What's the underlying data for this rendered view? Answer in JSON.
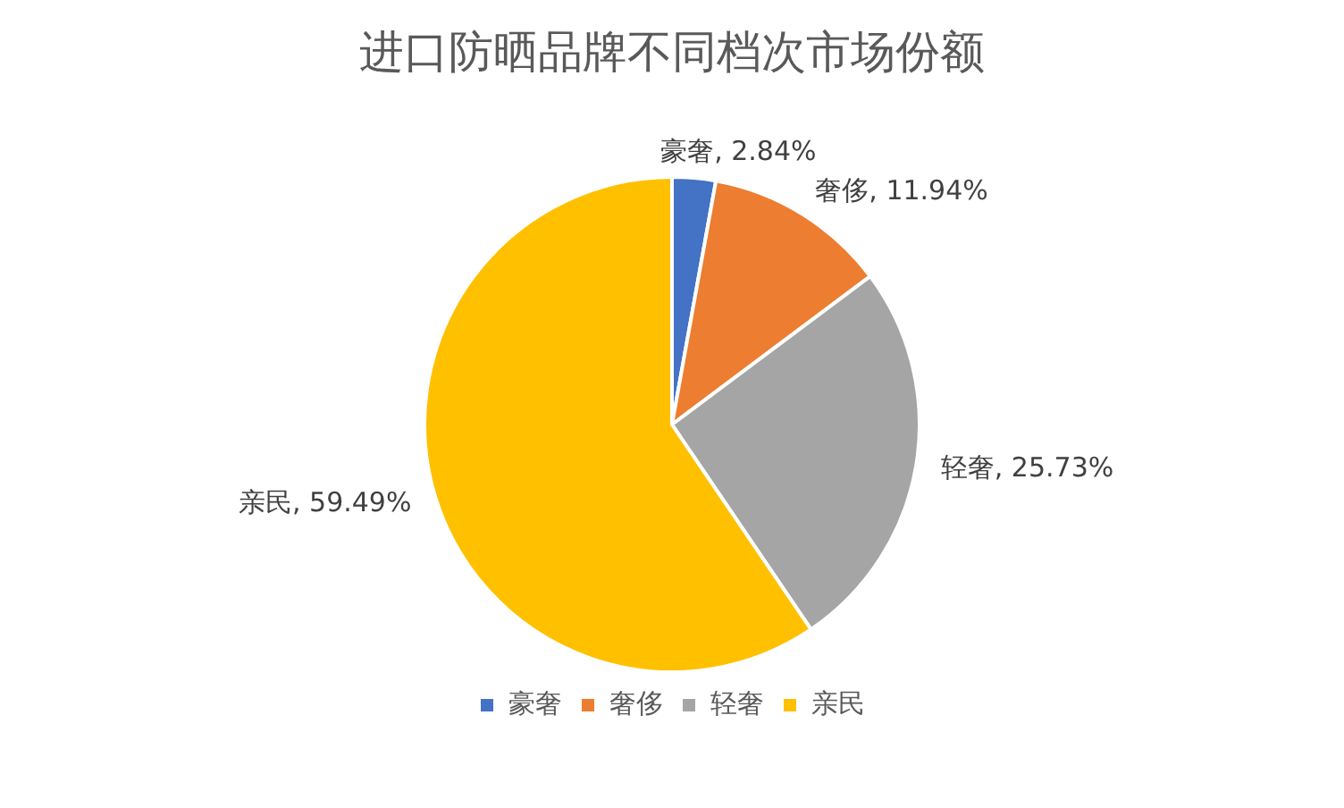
{
  "chart_data": {
    "type": "pie",
    "title": "进口防晒品牌不同档次市场份额",
    "categories": [
      "豪奢",
      "奢侈",
      "轻奢",
      "亲民"
    ],
    "values": [
      2.84,
      11.94,
      25.73,
      59.49
    ],
    "colors": [
      "#4472c4",
      "#ed7d31",
      "#a5a5a5",
      "#ffc000"
    ],
    "value_labels": [
      "豪奢, 2.84%",
      "奢侈, 11.94%",
      "轻奢, 25.73%",
      "亲民, 59.49%"
    ],
    "legend": "bottom"
  }
}
